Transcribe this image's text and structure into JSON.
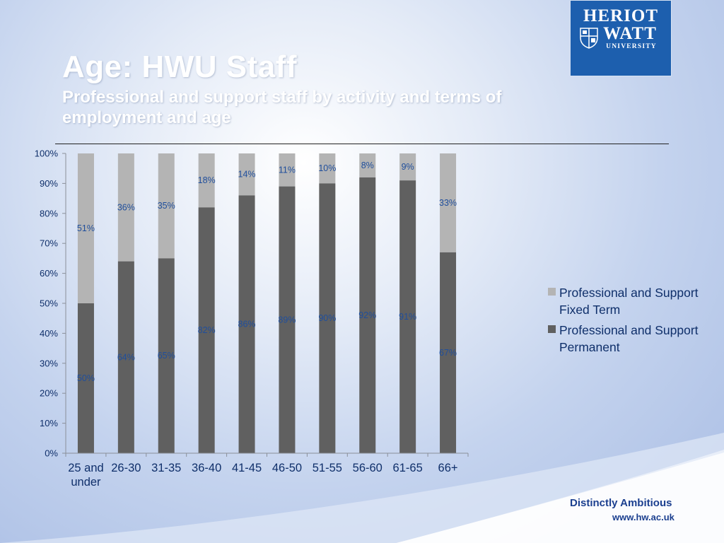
{
  "title": "Age: HWU Staff",
  "subtitle": "Professional and support staff by activity and terms of employment and age",
  "logo": {
    "line1": "HERIOT",
    "line2": "WATT",
    "line3": "UNIVERSITY"
  },
  "footer": {
    "tagline": "Distinctly Ambitious",
    "url": "www.hw.ac.uk"
  },
  "colors": {
    "permanent": "#606060",
    "fixed_term": "#b4b4b4",
    "text": "#0f2f6a",
    "label": "#1f4e9c",
    "brand": "#1d5fae"
  },
  "chart_data": {
    "type": "bar",
    "stacked": true,
    "categories": [
      "25 and under",
      "26-30",
      "31-35",
      "36-40",
      "41-45",
      "46-50",
      "51-55",
      "56-60",
      "61-65",
      "66+"
    ],
    "series": [
      {
        "name": "Professional and Support Permanent",
        "values": [
          50,
          64,
          65,
          82,
          86,
          89,
          90,
          92,
          91,
          67
        ],
        "labels": [
          "50%",
          "64%",
          "65%",
          "82%",
          "86%",
          "89%",
          "90%",
          "92%",
          "91%",
          "67%"
        ]
      },
      {
        "name": "Professional and Support Fixed Term",
        "values": [
          51,
          36,
          35,
          18,
          14,
          11,
          10,
          8,
          9,
          33
        ],
        "labels": [
          "51%",
          "36%",
          "35%",
          "18%",
          "14%",
          "11%",
          "10%",
          "8%",
          "9%",
          "33%"
        ]
      }
    ],
    "yticks": [
      "0%",
      "10%",
      "20%",
      "30%",
      "40%",
      "50%",
      "60%",
      "70%",
      "80%",
      "90%",
      "100%"
    ],
    "ylim": [
      0,
      100
    ],
    "legend": "right"
  }
}
